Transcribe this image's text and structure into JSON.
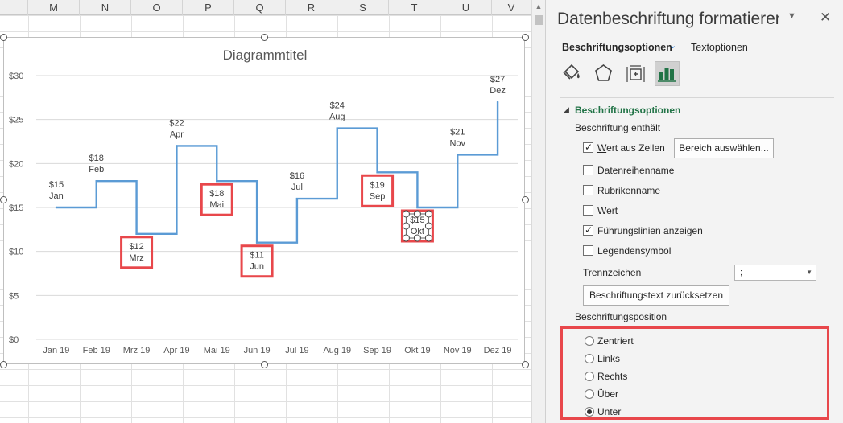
{
  "sheet": {
    "columns": [
      "M",
      "N",
      "O",
      "P",
      "Q",
      "R",
      "S",
      "T",
      "U",
      "V"
    ]
  },
  "chart_data": {
    "type": "line",
    "title": "Diagrammtitel",
    "categories": [
      "Jan 19",
      "Feb 19",
      "Mrz 19",
      "Apr 19",
      "Mai 19",
      "Jun 19",
      "Jul 19",
      "Aug 19",
      "Sep 19",
      "Okt 19",
      "Nov 19",
      "Dez 19"
    ],
    "values": [
      15,
      18,
      12,
      22,
      18,
      11,
      16,
      24,
      19,
      15,
      21,
      27
    ],
    "ylim": [
      0,
      30
    ],
    "yticks": [
      "$30",
      "$25",
      "$20",
      "$15",
      "$10",
      "$5",
      "$0"
    ],
    "ytick_values": [
      30,
      25,
      20,
      15,
      10,
      5,
      0
    ],
    "grid": true,
    "line_style": "step",
    "line_color": "#5b9bd5",
    "data_labels": [
      {
        "value": "$15",
        "month": "Jan",
        "below": false,
        "boxed": false
      },
      {
        "value": "$18",
        "month": "Feb",
        "below": false,
        "boxed": false
      },
      {
        "value": "$12",
        "month": "Mrz",
        "below": true,
        "boxed": true
      },
      {
        "value": "$22",
        "month": "Apr",
        "below": false,
        "boxed": false
      },
      {
        "value": "$18",
        "month": "Mai",
        "below": true,
        "boxed": true
      },
      {
        "value": "$11",
        "month": "Jun",
        "below": true,
        "boxed": true
      },
      {
        "value": "$16",
        "month": "Jul",
        "below": false,
        "boxed": false
      },
      {
        "value": "$24",
        "month": "Aug",
        "below": false,
        "boxed": false
      },
      {
        "value": "$19",
        "month": "Sep",
        "below": true,
        "boxed": true
      },
      {
        "value": "$15",
        "month": "Okt",
        "below": true,
        "boxed": true,
        "selected": true
      },
      {
        "value": "$21",
        "month": "Nov",
        "below": false,
        "boxed": false
      },
      {
        "value": "$27",
        "month": "Dez",
        "below": false,
        "boxed": false
      }
    ],
    "highlight_color": "#e8474b"
  },
  "pane": {
    "title": "Datenbeschriftung formatieren",
    "tab_label_options": "Beschriftungsoptionen",
    "tab_text_options": "Textoptionen",
    "section_title": "Beschriftungsoptionen",
    "label_contains": "Beschriftung enthält",
    "checkboxes": [
      {
        "label": "Wert aus Zellen",
        "checked": true
      },
      {
        "label": "Datenreihenname",
        "checked": false
      },
      {
        "label": "Rubrikenname",
        "checked": false
      },
      {
        "label": "Wert",
        "checked": false
      },
      {
        "label": "Führungslinien anzeigen",
        "checked": true
      },
      {
        "label": "Legendensymbol",
        "checked": false
      }
    ],
    "range_button": "Bereich auswählen...",
    "separator_label": "Trennzeichen",
    "separator_value": ";",
    "reset_button": "Beschriftungstext zurücksetzen",
    "position_label": "Beschriftungsposition",
    "positions": [
      {
        "label": "Zentriert",
        "selected": false
      },
      {
        "label": "Links",
        "selected": false
      },
      {
        "label": "Rechts",
        "selected": false
      },
      {
        "label": "Über",
        "selected": false
      },
      {
        "label": "Unter",
        "selected": true
      }
    ],
    "accent_color": "#217346"
  }
}
